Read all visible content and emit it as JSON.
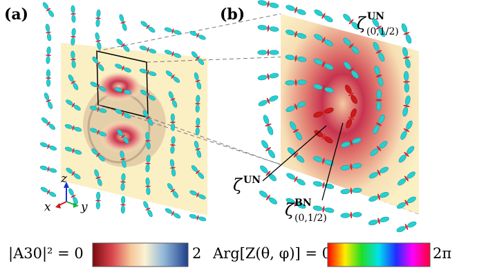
{
  "panels": {
    "a_label": "(a)",
    "b_label": "(b)"
  },
  "axes": {
    "z": "z",
    "x": "x",
    "y": "y"
  },
  "annotations": {
    "zeta_un_top_base": "ζ",
    "zeta_un_top_sup": "UN",
    "zeta_un_top_sub": "(0,1/2)",
    "zeta_un_base": "ζ",
    "zeta_un_sup": "UN",
    "zeta_bn_base": "ζ",
    "zeta_bn_sup": "BN",
    "zeta_bn_sub": "(0,1/2)"
  },
  "colorbars": {
    "amp_label": "|A30|² = 0",
    "amp_max": "2",
    "arg_label": "Arg[Z(θ, φ)] = 0",
    "arg_max": "2π"
  },
  "colors": {
    "lobe": "#26cfd1",
    "lobe_dark": "#139fa6",
    "ring": "#e0222a",
    "plane_bg": "#fbefc4",
    "accent_red": "#d01818"
  }
}
